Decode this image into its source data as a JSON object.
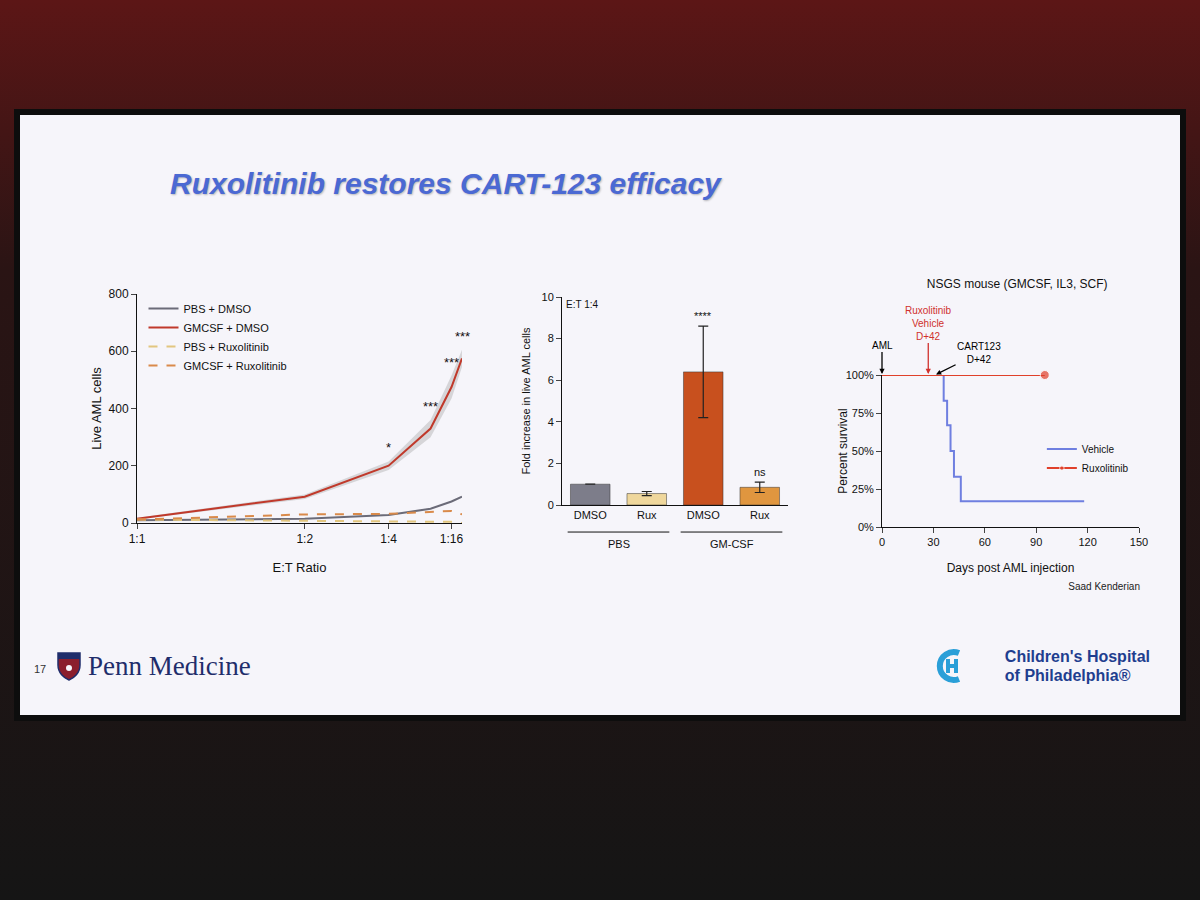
{
  "slide": {
    "title": "Ruxolitinib restores CART-123 efficacy",
    "page_number": 17,
    "footer_left": "Penn Medicine",
    "footer_right": [
      "Children's Hospital",
      "of Philadelphia®"
    ],
    "credit": "Saad Kenderian"
  },
  "chart_data": [
    {
      "type": "line",
      "x": [
        1,
        0.5,
        0.25,
        0.125,
        0.0625,
        0.03125
      ],
      "x_label": "E:T Ratio",
      "y_label": "Live AML cells",
      "xlim": [
        1,
        0.03125
      ],
      "xticks": [
        {
          "value": 1,
          "label": "1:1"
        },
        {
          "value": 0.5,
          "label": "1:2"
        },
        {
          "value": 0.25,
          "label": "1:4"
        },
        {
          "value": 0.0625,
          "label": "1:16"
        }
      ],
      "ylim": [
        0,
        800
      ],
      "yticks": [
        0,
        200,
        400,
        600,
        800
      ],
      "grid": false,
      "legend": "upper left",
      "series": [
        {
          "name": "PBS + DMSO",
          "color": "#6b6b78",
          "line_style": "solid",
          "values": [
            10,
            15,
            28,
            50,
            75,
            92
          ]
        },
        {
          "name": "GMCSF + DMSO",
          "color": "#c0392b",
          "line_style": "solid",
          "values": [
            15,
            92,
            200,
            330,
            475,
            575
          ],
          "error": [
            3,
            8,
            15,
            30,
            40,
            30
          ]
        },
        {
          "name": "PBS + Ruxolitinib",
          "color": "#e2c67f",
          "line_style": "dashed",
          "values": [
            12,
            8,
            6,
            5,
            4,
            0
          ]
        },
        {
          "name": "GMCSF + Ruxolitinib",
          "color": "#d98a4a",
          "line_style": "dashed",
          "values": [
            12,
            30,
            32,
            40,
            42,
            30
          ]
        }
      ],
      "annotations": [
        {
          "text": "*",
          "x": 0.25
        },
        {
          "text": "***",
          "x": 0.125
        },
        {
          "text": "***",
          "x": 0.0625
        },
        {
          "text": "***",
          "x": 0.03125
        }
      ]
    },
    {
      "type": "bar",
      "annotation": "E:T 1:4",
      "categories": [
        "DMSO",
        "Rux",
        "DMSO",
        "Rux"
      ],
      "groups": [
        {
          "label": "PBS",
          "size": 2
        },
        {
          "label": "GM-CSF",
          "size": 2
        }
      ],
      "values": [
        1.0,
        0.55,
        6.4,
        0.85
      ],
      "error": [
        0,
        0.1,
        2.2,
        0.25
      ],
      "colors": [
        "#7d7d8a",
        "#efd79c",
        "#c8501e",
        "#e0963f"
      ],
      "significance": [
        null,
        null,
        "****",
        "ns"
      ],
      "y_label": "Fold increase in live AML cells",
      "ylim": [
        0,
        10
      ],
      "yticks": [
        0,
        2,
        4,
        6,
        8,
        10
      ],
      "grid": false
    },
    {
      "type": "line",
      "title": "NSGS mouse (GMCSF, IL3, SCF)",
      "x_label": "Days post AML injection",
      "y_label": "Percent survival",
      "xlim": [
        0,
        150
      ],
      "xticks": [
        0,
        30,
        60,
        90,
        120,
        150
      ],
      "ylim": [
        0,
        100
      ],
      "yticks": [
        {
          "value": 0,
          "label": "0%"
        },
        {
          "value": 25,
          "label": "25%"
        },
        {
          "value": 50,
          "label": "50%"
        },
        {
          "value": 75,
          "label": "75%"
        },
        {
          "value": 100,
          "label": "100%"
        }
      ],
      "grid": false,
      "legend": "center right",
      "series": [
        {
          "name": "Vehicle",
          "color": "#6f7fe0",
          "line_style": "step",
          "x": [
            0,
            36,
            38,
            40,
            42,
            46,
            118
          ],
          "values": [
            100,
            83,
            67,
            50,
            33,
            17,
            17
          ]
        },
        {
          "name": "Ruxolitinib",
          "color": "#e0402a",
          "line_style": "solid",
          "marker": "circle",
          "x": [
            0,
            95
          ],
          "values": [
            100,
            100
          ]
        }
      ],
      "annotations": [
        {
          "text": [
            "AML"
          ],
          "x": 0,
          "color": "#000000"
        },
        {
          "text": [
            "Ruxolitinib",
            "Vehicle",
            "D+42"
          ],
          "x": 27,
          "color": "#d0312d"
        },
        {
          "text": [
            "CART123",
            "D+42"
          ],
          "x": 31,
          "color": "#000000"
        }
      ]
    }
  ]
}
